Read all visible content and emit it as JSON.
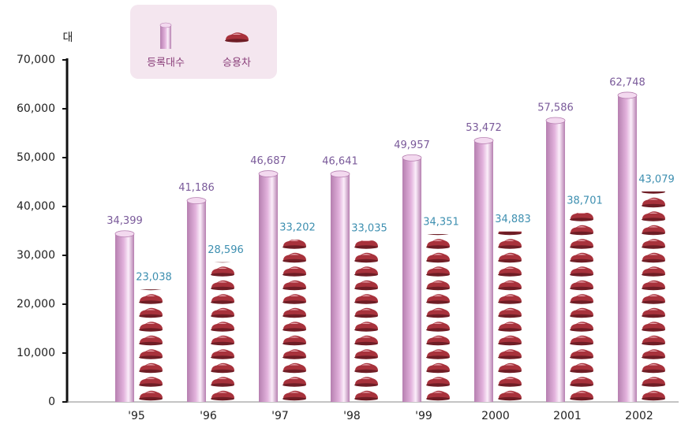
{
  "chart_data": {
    "type": "bar",
    "y_unit_label": "대",
    "categories": [
      "'95",
      "'96",
      "'97",
      "'98",
      "'99",
      "2000",
      "2001",
      "2002"
    ],
    "series": [
      {
        "name": "등록대수",
        "color": "#e2b2dc",
        "style": "cylinder",
        "values": [
          34399,
          41186,
          46687,
          46641,
          49957,
          53472,
          57586,
          62748
        ],
        "value_labels": [
          "34,399",
          "41,186",
          "46,687",
          "46,641",
          "49,957",
          "53,472",
          "57,586",
          "62,748"
        ]
      },
      {
        "name": "승용차",
        "color": "#a8323c",
        "style": "car-stack",
        "values": [
          23038,
          28596,
          33202,
          33035,
          34351,
          34883,
          38701,
          43079
        ],
        "value_labels": [
          "23,038",
          "28,596",
          "33,202",
          "33,035",
          "34,351",
          "34,883",
          "38,701",
          "43,079"
        ]
      }
    ],
    "ylim": [
      0,
      70000
    ],
    "yticks": [
      0,
      {
        "value": 10000,
        "label": "10,000"
      },
      {
        "value": 20000,
        "label": "20,000"
      },
      {
        "value": 30000,
        "label": "30,000"
      },
      {
        "value": 40000,
        "label": "40,000"
      },
      {
        "value": 50000,
        "label": "50,000"
      },
      {
        "value": 60000,
        "label": "60,000"
      },
      {
        "value": 70000,
        "label": "70,000"
      }
    ],
    "grid": false
  }
}
